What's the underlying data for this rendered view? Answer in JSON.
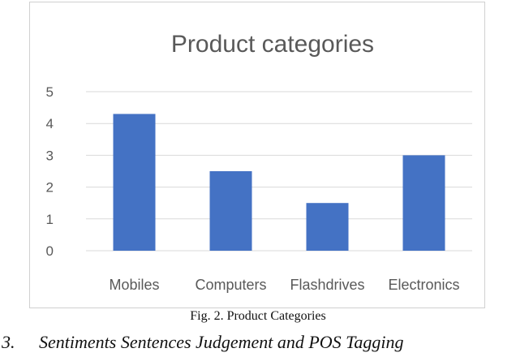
{
  "chart_data": {
    "type": "bar",
    "title": "Product categories",
    "categories": [
      "Mobiles",
      "Computers",
      "Flashdrives",
      "Electronics"
    ],
    "values": [
      4.3,
      2.5,
      1.5,
      3.0
    ],
    "ylim": [
      0,
      5
    ],
    "yticks": [
      "0",
      "1",
      "2",
      "3",
      "4",
      "5"
    ],
    "grid": true,
    "legend": "none",
    "bar_color": "#4472c4",
    "grid_color": "#d9d9d9"
  },
  "caption": "Fig. 2. Product Categories",
  "section": {
    "number": "3.",
    "title": "Sentiments Sentences Judgement and POS Tagging"
  }
}
